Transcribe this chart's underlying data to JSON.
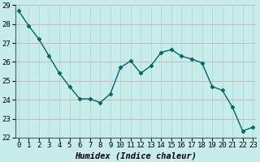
{
  "x": [
    0,
    1,
    2,
    3,
    4,
    5,
    6,
    7,
    8,
    9,
    10,
    11,
    12,
    13,
    14,
    15,
    16,
    17,
    18,
    19,
    20,
    21,
    22,
    23
  ],
  "y": [
    28.7,
    27.9,
    27.2,
    26.3,
    25.4,
    24.7,
    24.05,
    24.05,
    23.85,
    24.3,
    25.7,
    26.05,
    25.4,
    25.8,
    26.5,
    26.65,
    26.3,
    26.15,
    25.95,
    24.7,
    24.5,
    23.6,
    22.35,
    22.55
  ],
  "line_color": "#006666",
  "marker": "D",
  "marker_size": 2.5,
  "bg_color": "#c8ecea",
  "grid_color_h": "#d4a0a0",
  "grid_color_v": "#a8d4d0",
  "xlabel": "Humidex (Indice chaleur)",
  "ylim": [
    22,
    29
  ],
  "xlim": [
    -0.3,
    23.3
  ],
  "yticks": [
    22,
    23,
    24,
    25,
    26,
    27,
    28,
    29
  ],
  "xticks": [
    0,
    1,
    2,
    3,
    4,
    5,
    6,
    7,
    8,
    9,
    10,
    11,
    12,
    13,
    14,
    15,
    16,
    17,
    18,
    19,
    20,
    21,
    22,
    23
  ],
  "xlabel_fontsize": 7.5,
  "tick_fontsize": 6.5,
  "linewidth": 1.0
}
